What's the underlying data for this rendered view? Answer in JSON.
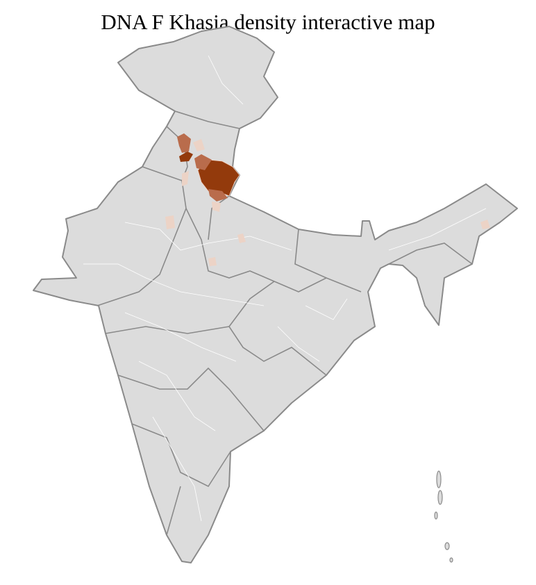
{
  "title": "DNA F Khasia density interactive map",
  "map": {
    "region": "India districts",
    "colors": {
      "base": "#dcdcdc",
      "district_border": "#ffffff",
      "state_border": "#8a8a8a",
      "high": "#933a0c",
      "medium": "#b96c4c",
      "low": "#ecd3c6"
    },
    "highlighted_levels": [
      "high",
      "medium",
      "low"
    ]
  }
}
